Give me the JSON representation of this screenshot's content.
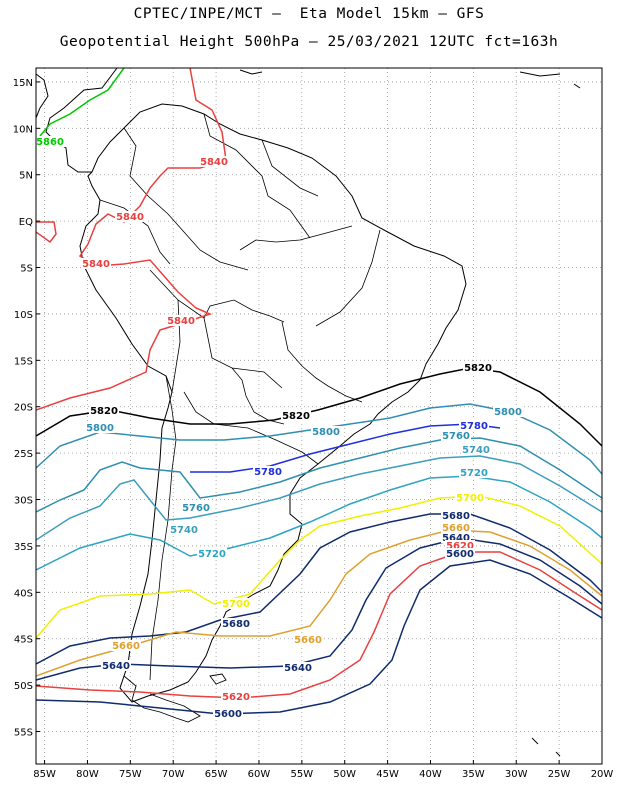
{
  "header": {
    "line1": "CPTEC/INPE/MCT –  Eta Model 15km – GFS",
    "line2": "Geopotential Height 500hPa – 25/03/2021 12UTC fct=163h"
  },
  "axes": {
    "lat_labels": [
      "15N",
      "10N",
      "5N",
      "EQ",
      "5S",
      "10S",
      "15S",
      "20S",
      "25S",
      "30S",
      "35S",
      "40S",
      "45S",
      "50S",
      "55S"
    ],
    "lon_labels": [
      "85W",
      "80W",
      "75W",
      "70W",
      "65W",
      "60W",
      "55W",
      "50W",
      "45W",
      "40W",
      "35W",
      "30W",
      "25W",
      "20W"
    ],
    "lat_range": [
      -58.5,
      16.5
    ],
    "lon_range": [
      -86,
      -20
    ],
    "grid": "dotted",
    "grid_color": "#9a9a9a"
  },
  "contours": [
    {
      "value": "5860",
      "color": "#00c800"
    },
    {
      "value": "5840",
      "color": "#e8413f"
    },
    {
      "value": "5820",
      "color": "#000000"
    },
    {
      "value": "5800",
      "color": "#2f8fb2"
    },
    {
      "value": "5780",
      "color": "#1f2fe0"
    },
    {
      "value": "5760",
      "color": "#2e8fae"
    },
    {
      "value": "5740",
      "color": "#3d9dbd"
    },
    {
      "value": "5720",
      "color": "#2ea4c4"
    },
    {
      "value": "5700",
      "color": "#f0f000"
    },
    {
      "value": "5680",
      "color": "#102c6e"
    },
    {
      "value": "5660",
      "color": "#e0a030"
    },
    {
      "value": "5640",
      "color": "#102c6e"
    },
    {
      "value": "5620",
      "color": "#e8413f"
    },
    {
      "value": "5600",
      "color": "#102c6e"
    }
  ]
}
